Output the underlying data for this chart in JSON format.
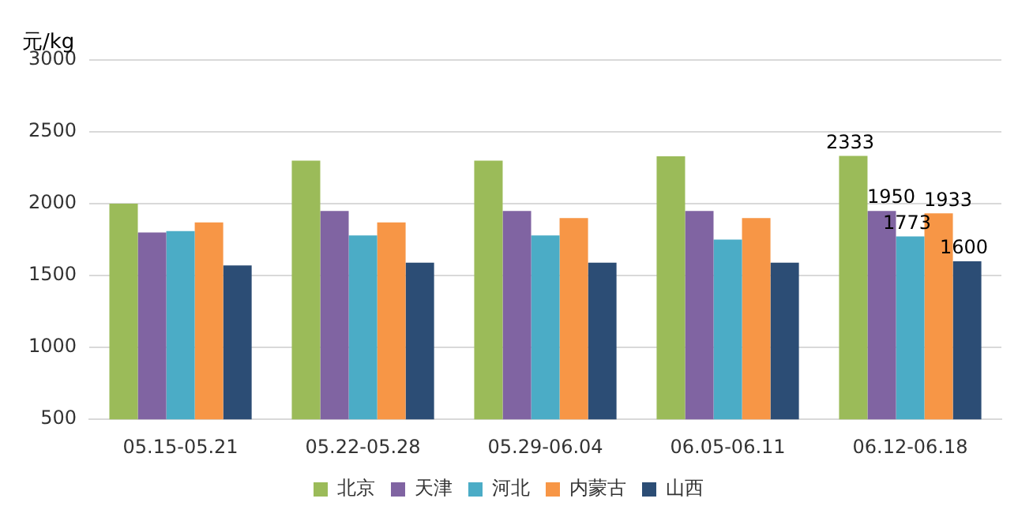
{
  "chart_data": {
    "type": "bar",
    "ylabel": "元/kg",
    "categories": [
      "05.15-05.21",
      "05.22-05.28",
      "05.29-06.04",
      "06.05-06.11",
      "06.12-06.18"
    ],
    "series": [
      {
        "name": "北京",
        "color": "#9bbb59",
        "values": [
          2000,
          2300,
          2300,
          2330,
          2333
        ],
        "value_labels": [
          null,
          null,
          null,
          null,
          "2333"
        ]
      },
      {
        "name": "天津",
        "color": "#8064a2",
        "values": [
          1800,
          1950,
          1950,
          1950,
          1950
        ],
        "value_labels": [
          null,
          null,
          null,
          null,
          "1950"
        ]
      },
      {
        "name": "河北",
        "color": "#4bacc6",
        "values": [
          1810,
          1780,
          1780,
          1750,
          1773
        ],
        "value_labels": [
          null,
          null,
          null,
          null,
          "1773"
        ]
      },
      {
        "name": "内蒙古",
        "color": "#f79646",
        "values": [
          1870,
          1870,
          1900,
          1900,
          1933
        ],
        "value_labels": [
          null,
          null,
          null,
          null,
          "1933"
        ]
      },
      {
        "name": "山西",
        "color": "#2c4d75",
        "values": [
          1570,
          1590,
          1590,
          1590,
          1600
        ],
        "value_labels": [
          null,
          null,
          null,
          null,
          "1600"
        ]
      }
    ],
    "ylim": [
      500,
      3000
    ],
    "yticks": [
      500,
      1000,
      1500,
      2000,
      2500,
      3000
    ],
    "grid": "y",
    "legend": "bottom"
  }
}
